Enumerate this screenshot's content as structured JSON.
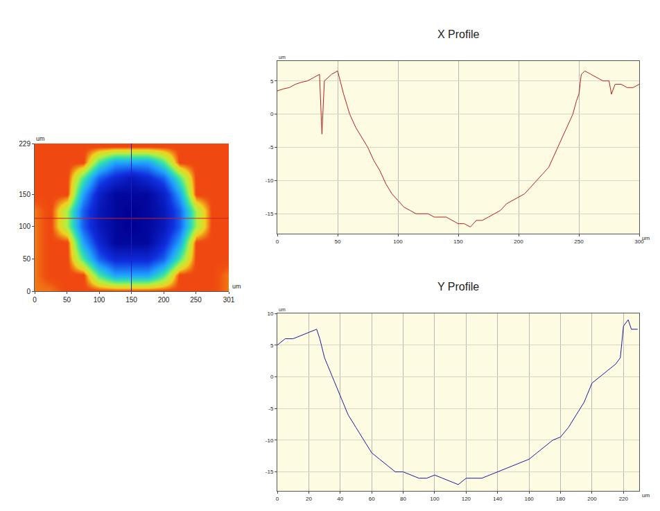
{
  "chart_data": [
    {
      "type": "heatmap",
      "x": [
        0,
        25,
        50,
        75,
        100,
        125,
        150,
        175,
        200,
        225,
        250,
        275,
        300
      ],
      "y": [
        0,
        25,
        50,
        75,
        100,
        125,
        150,
        175,
        200,
        225
      ],
      "cells": [
        [
          4,
          4,
          5,
          5,
          5,
          5,
          5,
          5,
          5,
          5,
          5,
          5,
          4
        ],
        [
          4,
          5,
          5,
          5,
          -2,
          -6,
          -6,
          -6,
          -2,
          5,
          5,
          5,
          4
        ],
        [
          4,
          5,
          5,
          -2,
          -9,
          -12,
          -12,
          -12,
          -9,
          -2,
          5,
          5,
          5
        ],
        [
          4,
          5,
          5,
          -6,
          -12,
          -16,
          -16,
          -16,
          -12,
          -6,
          5,
          5,
          5
        ],
        [
          4,
          5,
          0,
          -9,
          -14,
          -16,
          -17,
          -16,
          -14,
          -9,
          0,
          5,
          5
        ],
        [
          4,
          5,
          0,
          -9,
          -14,
          -16,
          -17,
          -16,
          -14,
          -9,
          0,
          5,
          5
        ],
        [
          5,
          5,
          5,
          -6,
          -13,
          -16,
          -16,
          -16,
          -13,
          -6,
          5,
          5,
          5
        ],
        [
          5,
          5,
          5,
          -2,
          -9,
          -12,
          -14,
          -12,
          -9,
          -2,
          5,
          5,
          5
        ],
        [
          5,
          5,
          5,
          5,
          -2,
          -6,
          -6,
          -6,
          -2,
          5,
          5,
          5,
          5
        ],
        [
          5,
          5,
          5,
          5,
          5,
          5,
          5,
          5,
          5,
          5,
          5,
          5,
          5
        ]
      ],
      "zlim": [
        -17,
        7
      ],
      "cursor_x": 150,
      "cursor_y": 113,
      "xlim": [
        0,
        301
      ],
      "ylim": [
        0,
        229
      ],
      "xticks": [
        0,
        50,
        100,
        150,
        200,
        250,
        301
      ],
      "yticks": [
        0,
        50,
        100,
        150,
        229
      ],
      "xlabel": "um",
      "ylabel": "um"
    },
    {
      "type": "line",
      "title": "X Profile",
      "x": [
        0,
        5,
        10,
        15,
        20,
        25,
        30,
        35,
        37,
        39,
        42,
        45,
        50,
        55,
        60,
        65,
        70,
        75,
        80,
        85,
        90,
        95,
        100,
        105,
        110,
        115,
        120,
        125,
        130,
        135,
        140,
        145,
        150,
        155,
        160,
        165,
        170,
        175,
        180,
        185,
        190,
        195,
        200,
        205,
        210,
        215,
        220,
        225,
        230,
        235,
        240,
        245,
        248,
        250,
        252,
        255,
        260,
        265,
        270,
        275,
        277,
        280,
        285,
        290,
        295,
        300
      ],
      "values": [
        3.5,
        3.8,
        4,
        4.5,
        4.8,
        5,
        5.5,
        6,
        -3,
        5,
        5.5,
        6,
        6.5,
        3,
        0,
        -2,
        -3.5,
        -5,
        -7,
        -8.5,
        -10.5,
        -12,
        -13,
        -14,
        -14.5,
        -15,
        -15,
        -15,
        -15.5,
        -15.5,
        -15.5,
        -16,
        -16.5,
        -16.5,
        -17,
        -16,
        -16,
        -15.5,
        -15,
        -14.5,
        -13.5,
        -13,
        -12.5,
        -12,
        -11,
        -10,
        -9,
        -8,
        -6,
        -4,
        -2,
        0,
        2,
        3,
        6,
        6.5,
        6,
        5.5,
        5,
        5,
        3,
        4.5,
        4.5,
        4,
        4,
        4.5
      ],
      "color": "#b42020",
      "xlim": [
        0,
        300
      ],
      "ylim": [
        -18,
        8
      ],
      "xticks": [
        0,
        50,
        100,
        150,
        200,
        250,
        300
      ],
      "yticks": [
        -15,
        -10,
        -5,
        0,
        5
      ],
      "xlabel": "um",
      "ylabel": "um",
      "grid": true
    },
    {
      "type": "line",
      "title": "Y Profile",
      "x": [
        0,
        5,
        10,
        15,
        20,
        25,
        27,
        30,
        35,
        40,
        45,
        50,
        55,
        60,
        65,
        70,
        75,
        80,
        85,
        90,
        95,
        100,
        105,
        110,
        115,
        120,
        125,
        130,
        135,
        140,
        145,
        150,
        155,
        160,
        165,
        170,
        175,
        180,
        185,
        190,
        195,
        200,
        205,
        210,
        215,
        218,
        220,
        223,
        225,
        229
      ],
      "values": [
        5,
        6,
        6,
        6.5,
        7,
        7.5,
        6,
        3,
        0,
        -3,
        -6,
        -8,
        -10,
        -12,
        -13,
        -14,
        -15,
        -15,
        -15.5,
        -16,
        -16,
        -15.5,
        -16,
        -16.5,
        -17,
        -16,
        -16,
        -16,
        -15.5,
        -15,
        -14.5,
        -14,
        -13.5,
        -13,
        -12,
        -11,
        -10,
        -9.5,
        -8,
        -6,
        -4,
        -1,
        0,
        1,
        2,
        3,
        8,
        9,
        7.5,
        7.5
      ],
      "color": "#1a1a9a",
      "xlim": [
        0,
        230
      ],
      "ylim": [
        -18,
        10
      ],
      "xticks": [
        0,
        20,
        40,
        60,
        80,
        100,
        120,
        140,
        160,
        180,
        200,
        220
      ],
      "yticks": [
        -15,
        -10,
        -5,
        0,
        5,
        10
      ],
      "xlabel": "um",
      "ylabel": "um",
      "grid": true
    }
  ]
}
